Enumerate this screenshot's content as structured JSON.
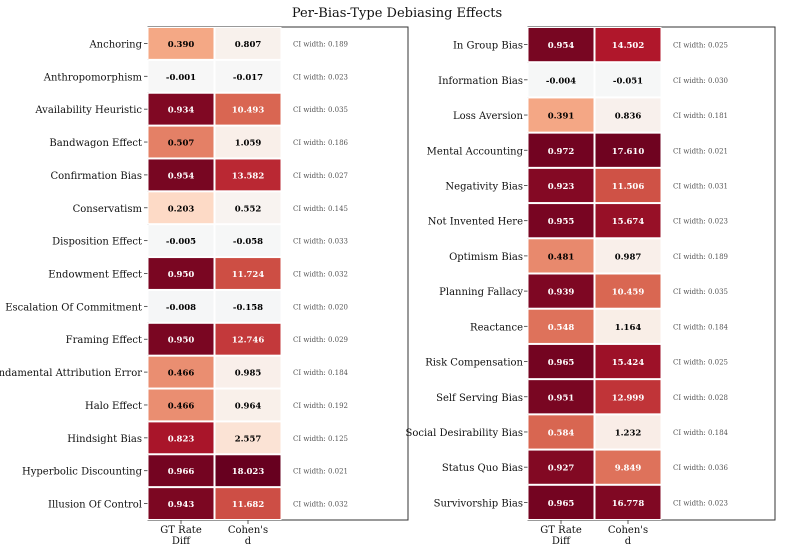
{
  "chart_data": {
    "type": "heatmap",
    "title": "Per-Bias-Type Debiasing Effects",
    "columns": [
      "GT Rate\nDiff",
      "Cohen's\nd"
    ],
    "ci_prefix": "CI width: ",
    "panels": [
      {
        "rows": [
          {
            "label": "Anchoring",
            "gt_rate_diff": "0.390",
            "cohens_d": "0.807",
            "ci_width": "0.189"
          },
          {
            "label": "Anthropomorphism",
            "gt_rate_diff": "-0.001",
            "cohens_d": "-0.017",
            "ci_width": "0.023"
          },
          {
            "label": "Availability Heuristic",
            "gt_rate_diff": "0.934",
            "cohens_d": "10.493",
            "ci_width": "0.035"
          },
          {
            "label": "Bandwagon Effect",
            "gt_rate_diff": "0.507",
            "cohens_d": "1.059",
            "ci_width": "0.186"
          },
          {
            "label": "Confirmation Bias",
            "gt_rate_diff": "0.954",
            "cohens_d": "13.582",
            "ci_width": "0.027"
          },
          {
            "label": "Conservatism",
            "gt_rate_diff": "0.203",
            "cohens_d": "0.552",
            "ci_width": "0.145"
          },
          {
            "label": "Disposition Effect",
            "gt_rate_diff": "-0.005",
            "cohens_d": "-0.058",
            "ci_width": "0.033"
          },
          {
            "label": "Endowment Effect",
            "gt_rate_diff": "0.950",
            "cohens_d": "11.724",
            "ci_width": "0.032"
          },
          {
            "label": "Escalation Of Commitment",
            "gt_rate_diff": "-0.008",
            "cohens_d": "-0.158",
            "ci_width": "0.020"
          },
          {
            "label": "Framing Effect",
            "gt_rate_diff": "0.950",
            "cohens_d": "12.746",
            "ci_width": "0.029"
          },
          {
            "label": "Fundamental Attribution Error",
            "gt_rate_diff": "0.466",
            "cohens_d": "0.985",
            "ci_width": "0.184"
          },
          {
            "label": "Halo Effect",
            "gt_rate_diff": "0.466",
            "cohens_d": "0.964",
            "ci_width": "0.192"
          },
          {
            "label": "Hindsight Bias",
            "gt_rate_diff": "0.823",
            "cohens_d": "2.557",
            "ci_width": "0.125"
          },
          {
            "label": "Hyperbolic Discounting",
            "gt_rate_diff": "0.966",
            "cohens_d": "18.023",
            "ci_width": "0.021"
          },
          {
            "label": "Illusion Of Control",
            "gt_rate_diff": "0.943",
            "cohens_d": "11.682",
            "ci_width": "0.032"
          }
        ]
      },
      {
        "rows": [
          {
            "label": "In Group Bias",
            "gt_rate_diff": "0.954",
            "cohens_d": "14.502",
            "ci_width": "0.025"
          },
          {
            "label": "Information Bias",
            "gt_rate_diff": "-0.004",
            "cohens_d": "-0.051",
            "ci_width": "0.030"
          },
          {
            "label": "Loss Aversion",
            "gt_rate_diff": "0.391",
            "cohens_d": "0.836",
            "ci_width": "0.181"
          },
          {
            "label": "Mental Accounting",
            "gt_rate_diff": "0.972",
            "cohens_d": "17.610",
            "ci_width": "0.021"
          },
          {
            "label": "Negativity Bias",
            "gt_rate_diff": "0.923",
            "cohens_d": "11.506",
            "ci_width": "0.031"
          },
          {
            "label": "Not Invented Here",
            "gt_rate_diff": "0.955",
            "cohens_d": "15.674",
            "ci_width": "0.023"
          },
          {
            "label": "Optimism Bias",
            "gt_rate_diff": "0.481",
            "cohens_d": "0.987",
            "ci_width": "0.189"
          },
          {
            "label": "Planning Fallacy",
            "gt_rate_diff": "0.939",
            "cohens_d": "10.459",
            "ci_width": "0.035"
          },
          {
            "label": "Reactance",
            "gt_rate_diff": "0.548",
            "cohens_d": "1.164",
            "ci_width": "0.184"
          },
          {
            "label": "Risk Compensation",
            "gt_rate_diff": "0.965",
            "cohens_d": "15.424",
            "ci_width": "0.025"
          },
          {
            "label": "Self Serving Bias",
            "gt_rate_diff": "0.951",
            "cohens_d": "12.999",
            "ci_width": "0.028"
          },
          {
            "label": "Social Desirability Bias",
            "gt_rate_diff": "0.584",
            "cohens_d": "1.232",
            "ci_width": "0.184"
          },
          {
            "label": "Status Quo Bias",
            "gt_rate_diff": "0.927",
            "cohens_d": "9.849",
            "ci_width": "0.036"
          },
          {
            "label": "Survivorship Bias",
            "gt_rate_diff": "0.965",
            "cohens_d": "16.778",
            "ci_width": "0.023"
          }
        ]
      }
    ],
    "colormap": "diverging blue-white-red",
    "colors": {
      "dark_red": "#67001f",
      "red": "#b2182b",
      "orange": "#d6604d",
      "salmon": "#f4a582",
      "peach": "#fddbc7",
      "neutral": "#f7f7f7",
      "ci_text": "#555555",
      "frame": "#333333"
    },
    "gt_color_range": [
      -1,
      1
    ],
    "d_color_range": [
      -18,
      18
    ]
  }
}
